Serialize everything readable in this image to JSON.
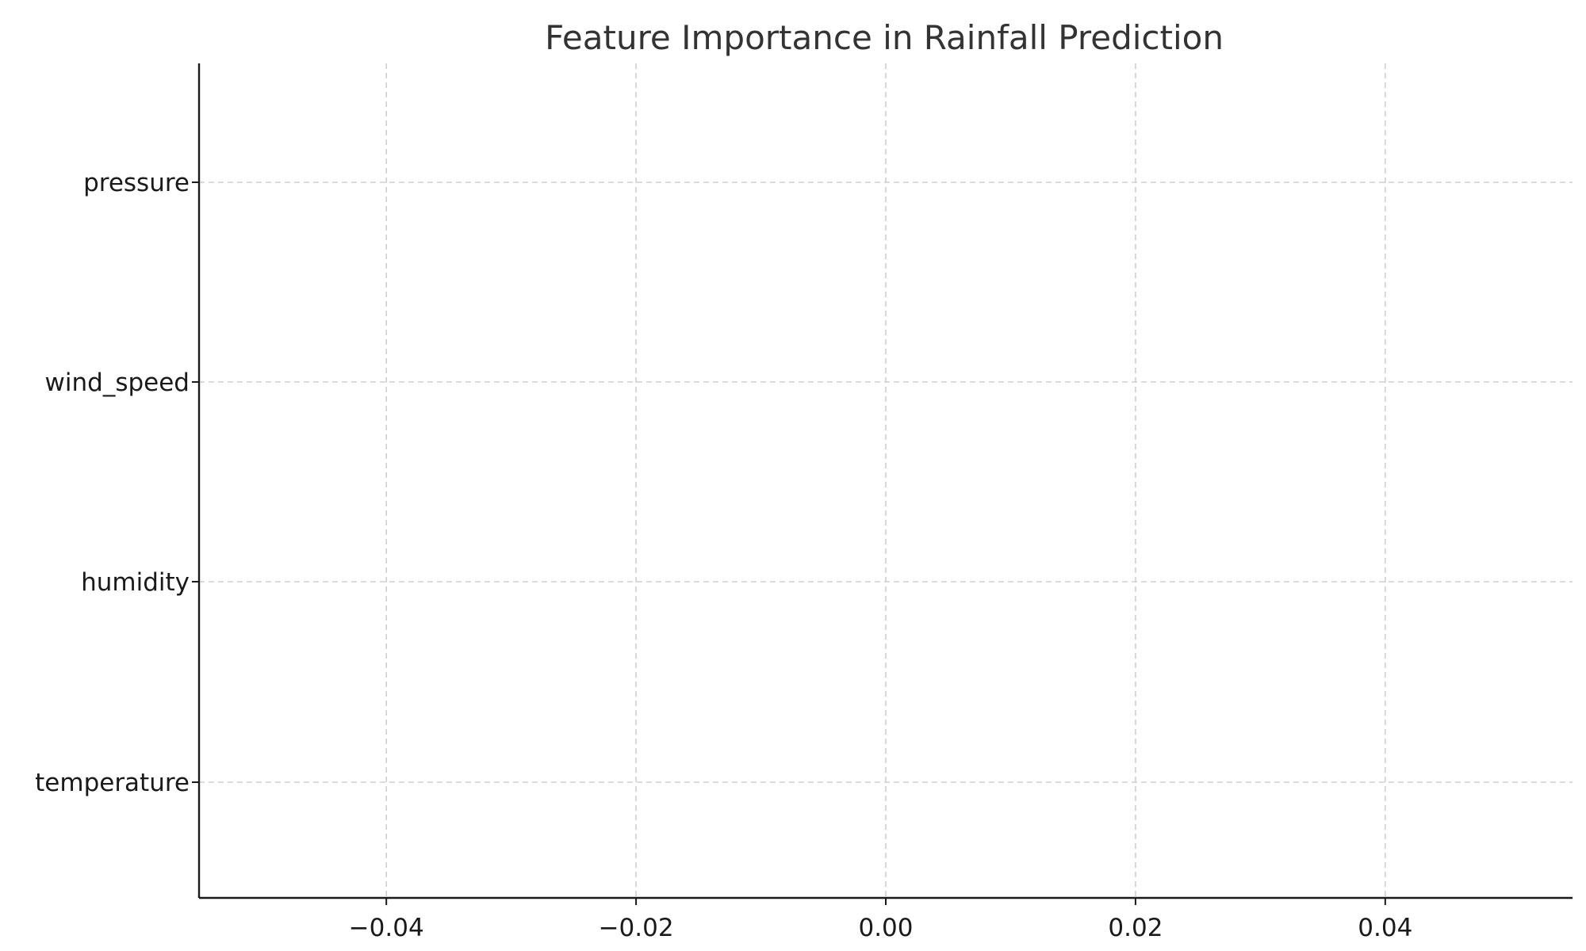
{
  "chart_data": {
    "type": "bar",
    "orientation": "horizontal",
    "title": "Feature Importance in Rainfall Prediction",
    "xlabel": "",
    "ylabel": "",
    "categories": [
      "temperature",
      "humidity",
      "wind_speed",
      "pressure"
    ],
    "values": [
      0,
      0,
      0,
      0
    ],
    "xlim": [
      -0.055,
      0.055
    ],
    "x_ticks": [
      -0.04,
      -0.02,
      0.0,
      0.02,
      0.04
    ],
    "x_tick_labels": [
      "−0.04",
      "−0.02",
      "0.00",
      "0.02",
      "0.04"
    ],
    "grid": true,
    "grid_style": "dashed",
    "legend": "none",
    "colors": {
      "bar": "#4c72b0",
      "grid": "#cfcfcf",
      "axis": "#1a1a1a",
      "title": "#333333"
    }
  }
}
